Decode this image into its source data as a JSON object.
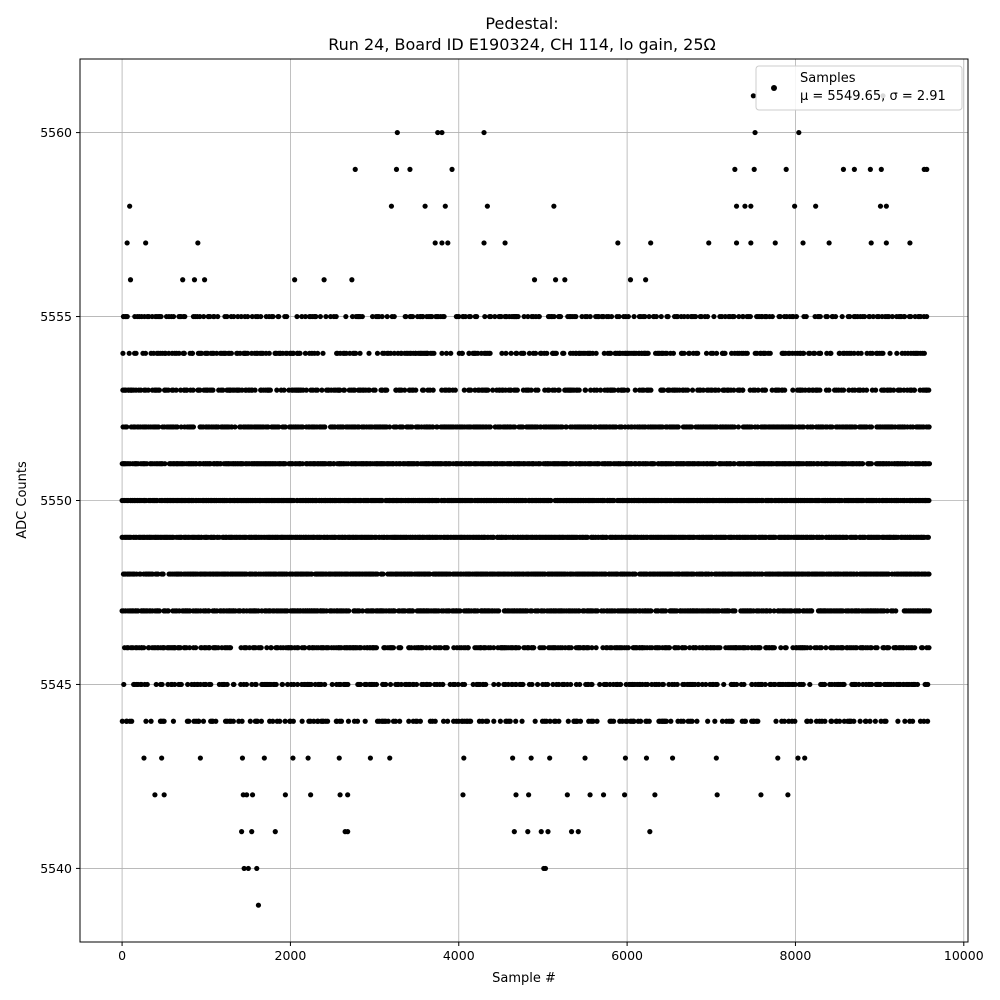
{
  "chart_data": {
    "type": "scatter",
    "title_line1": "Pedestal:",
    "title_line2": "Run 24, Board ID E190324, CH 114, lo gain, 25Ω",
    "xlabel": "Sample #",
    "ylabel": "ADC Counts",
    "xlim": [
      -500,
      10050
    ],
    "ylim": [
      5538,
      5562
    ],
    "xticks": [
      0,
      2000,
      4000,
      6000,
      8000,
      10000
    ],
    "yticks": [
      5540,
      5545,
      5550,
      5555,
      5560
    ],
    "grid": true,
    "legend": {
      "placement": "top-right",
      "entry_label": "Samples",
      "stats_label": "μ = 5549.65, σ = 2.91"
    },
    "series": [
      {
        "name": "Samples",
        "color": "#000000",
        "n_samples": 9600,
        "mean": 5549.65,
        "sigma": 2.91,
        "points": [
          [
            40,
            5555
          ],
          [
            60,
            5557
          ],
          [
            90,
            5558
          ],
          [
            100,
            5556
          ],
          [
            280,
            5557
          ],
          [
            900,
            5557
          ],
          [
            980,
            5556
          ],
          [
            720,
            5556
          ],
          [
            860,
            5556
          ],
          [
            1450,
            5540
          ],
          [
            1500,
            5540
          ],
          [
            1600,
            5540
          ],
          [
            1620,
            5539
          ],
          [
            1420,
            5541
          ],
          [
            1540,
            5541
          ],
          [
            1820,
            5541
          ],
          [
            2650,
            5541
          ],
          [
            2680,
            5541
          ],
          [
            390,
            5542
          ],
          [
            500,
            5542
          ],
          [
            1440,
            5542
          ],
          [
            1480,
            5542
          ],
          [
            1550,
            5542
          ],
          [
            1940,
            5542
          ],
          [
            2240,
            5542
          ],
          [
            2590,
            5542
          ],
          [
            2680,
            5542
          ],
          [
            260,
            5543
          ],
          [
            470,
            5543
          ],
          [
            930,
            5543
          ],
          [
            1430,
            5543
          ],
          [
            1690,
            5543
          ],
          [
            2030,
            5543
          ],
          [
            2210,
            5543
          ],
          [
            2580,
            5543
          ],
          [
            2950,
            5543
          ],
          [
            3180,
            5543
          ],
          [
            2050,
            5556
          ],
          [
            2400,
            5556
          ],
          [
            2730,
            5556
          ],
          [
            2770,
            5559
          ],
          [
            3270,
            5560
          ],
          [
            3260,
            5559
          ],
          [
            3420,
            5559
          ],
          [
            3750,
            5560
          ],
          [
            3800,
            5560
          ],
          [
            3920,
            5559
          ],
          [
            4300,
            5560
          ],
          [
            3200,
            5558
          ],
          [
            3600,
            5558
          ],
          [
            3840,
            5558
          ],
          [
            4340,
            5558
          ],
          [
            5130,
            5558
          ],
          [
            3720,
            5557
          ],
          [
            3800,
            5557
          ],
          [
            3870,
            5557
          ],
          [
            4300,
            5557
          ],
          [
            4550,
            5557
          ],
          [
            4900,
            5556
          ],
          [
            5150,
            5556
          ],
          [
            5260,
            5556
          ],
          [
            5890,
            5557
          ],
          [
            6040,
            5556
          ],
          [
            6220,
            5556
          ],
          [
            6280,
            5557
          ],
          [
            4050,
            5542
          ],
          [
            4680,
            5542
          ],
          [
            4830,
            5542
          ],
          [
            5290,
            5542
          ],
          [
            5560,
            5542
          ],
          [
            5720,
            5542
          ],
          [
            5970,
            5542
          ],
          [
            6330,
            5542
          ],
          [
            7070,
            5542
          ],
          [
            7590,
            5542
          ],
          [
            7910,
            5542
          ],
          [
            4060,
            5543
          ],
          [
            4640,
            5543
          ],
          [
            4860,
            5543
          ],
          [
            5080,
            5543
          ],
          [
            5500,
            5543
          ],
          [
            5980,
            5543
          ],
          [
            6230,
            5543
          ],
          [
            6540,
            5543
          ],
          [
            7060,
            5543
          ],
          [
            7790,
            5543
          ],
          [
            8110,
            5543
          ],
          [
            4660,
            5541
          ],
          [
            4820,
            5541
          ],
          [
            4980,
            5541
          ],
          [
            5060,
            5541
          ],
          [
            5340,
            5541
          ],
          [
            5420,
            5541
          ],
          [
            6270,
            5541
          ],
          [
            5010,
            5540
          ],
          [
            5030,
            5540
          ],
          [
            7500,
            5561
          ],
          [
            9040,
            5561
          ],
          [
            7520,
            5560
          ],
          [
            8040,
            5560
          ],
          [
            7280,
            5559
          ],
          [
            7510,
            5559
          ],
          [
            7890,
            5559
          ],
          [
            8570,
            5559
          ],
          [
            8700,
            5559
          ],
          [
            8890,
            5559
          ],
          [
            9020,
            5559
          ],
          [
            9530,
            5559
          ],
          [
            9560,
            5559
          ],
          [
            7300,
            5558
          ],
          [
            7400,
            5558
          ],
          [
            7470,
            5558
          ],
          [
            7990,
            5558
          ],
          [
            8240,
            5558
          ],
          [
            9010,
            5558
          ],
          [
            9080,
            5558
          ],
          [
            6970,
            5557
          ],
          [
            7300,
            5557
          ],
          [
            7470,
            5557
          ],
          [
            7760,
            5557
          ],
          [
            8090,
            5557
          ],
          [
            8400,
            5557
          ],
          [
            8900,
            5557
          ],
          [
            9080,
            5557
          ],
          [
            9360,
            5557
          ],
          [
            8030,
            5543
          ],
          [
            8580,
            5544
          ],
          [
            8350,
            5544
          ],
          [
            9300,
            5544
          ],
          [
            9570,
            5544
          ],
          [
            20,
            5545
          ],
          [
            150,
            5545
          ],
          [
            8300,
            5545
          ],
          [
            9200,
            5545
          ],
          [
            9400,
            5545
          ]
        ],
        "bands": [
          {
            "y": 5555,
            "density": 0.3
          },
          {
            "y": 5554,
            "density": 0.35
          },
          {
            "y": 5553,
            "density": 0.45
          },
          {
            "y": 5552,
            "density": 0.65
          },
          {
            "y": 5551,
            "density": 0.8
          },
          {
            "y": 5550,
            "density": 0.9
          },
          {
            "y": 5549,
            "density": 0.9
          },
          {
            "y": 5548,
            "density": 0.8
          },
          {
            "y": 5547,
            "density": 0.65
          },
          {
            "y": 5546,
            "density": 0.5
          },
          {
            "y": 5545,
            "density": 0.4
          },
          {
            "y": 5544,
            "density": 0.25
          }
        ]
      }
    ]
  }
}
